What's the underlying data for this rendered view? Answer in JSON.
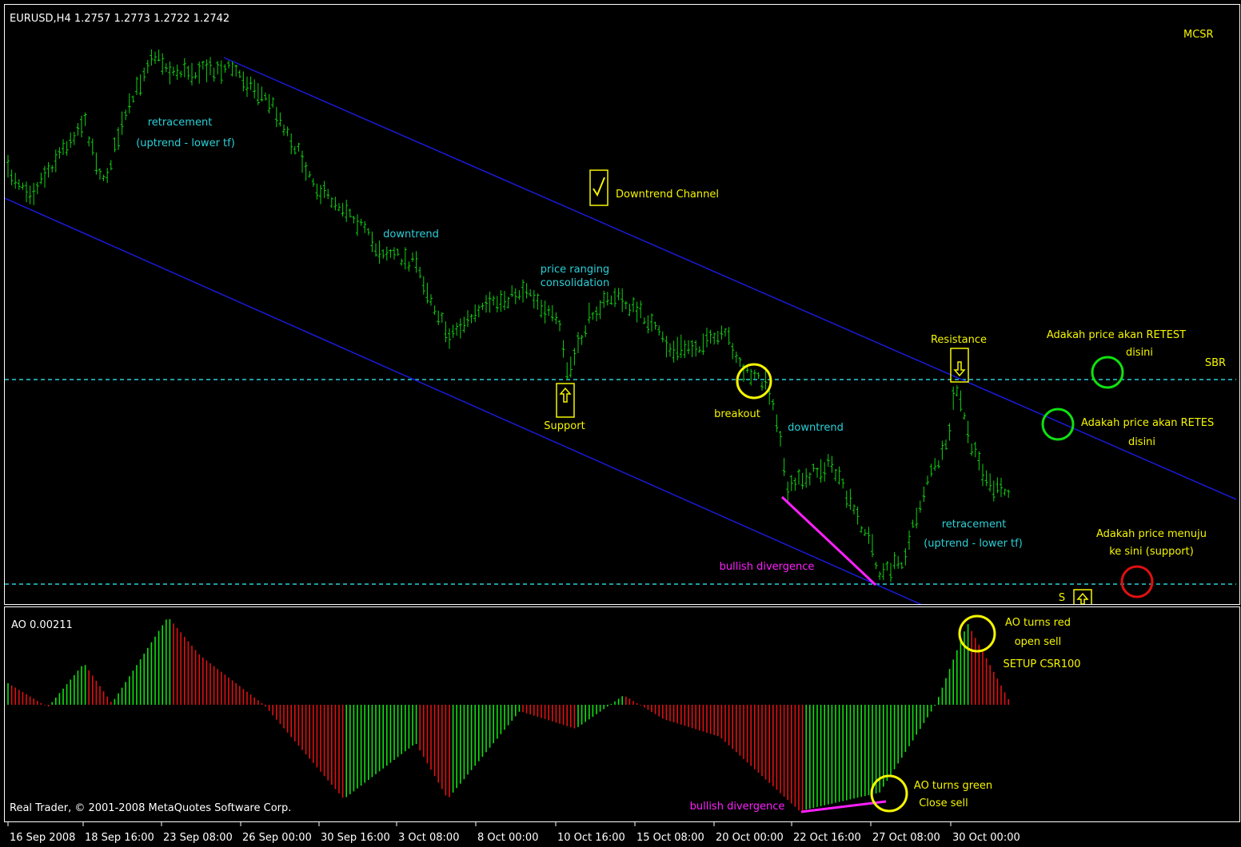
{
  "header": {
    "symbol": "EURUSD,H4  1.2757 1.2773 1.2722 1.2742",
    "corner": "MCSR"
  },
  "annotations": [
    "retracement",
    "(uptrend  - lower tf)",
    "downtrend",
    "Downtrend Channel",
    "price ranging",
    "consolidation",
    "Support",
    "breakout",
    "downtrend",
    "Resistance",
    "Adakah price akan RETEST",
    "disini",
    "SBR",
    "Adakah price akan RETES",
    "disini",
    "retracement",
    "(uptrend - lower tf)",
    "Adakah price menuju",
    "ke sini (support)",
    "bullish divergence",
    "S",
    "AO turns red",
    "open sell",
    "SETUP CSR100",
    "AO turns green",
    "Close sell",
    "bullish divergence"
  ],
  "indicator": {
    "label": "AO 0.00211",
    "copyright": "Real Trader, © 2001-2008 MetaQuotes Software Corp."
  },
  "time_axis": [
    "16 Sep 2008",
    "18 Sep 16:00",
    "23 Sep 08:00",
    "26 Sep 00:00",
    "30 Sep 16:00",
    "3 Oct 08:00",
    "8 Oct 00:00",
    "10 Oct 16:00",
    "15 Oct 08:00",
    "20 Oct 00:00",
    "22 Oct 16:00",
    "27 Oct 08:00",
    "30 Oct 00:00"
  ]
}
